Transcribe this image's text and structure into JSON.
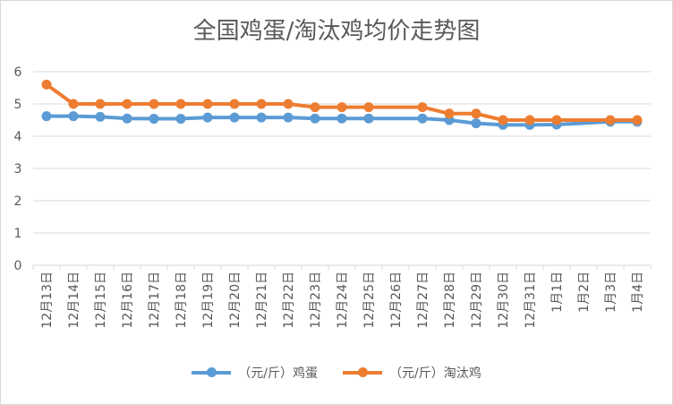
{
  "chart_data": {
    "type": "line",
    "title": "全国鸡蛋/淘汰鸡均价走势图",
    "xlabel": "",
    "ylabel": "",
    "ylim": [
      0,
      6
    ],
    "yticks": [
      "0",
      "1",
      "2",
      "3",
      "4",
      "5",
      "6"
    ],
    "grid": true,
    "legend_position": "bottom",
    "categories": [
      "12月13日",
      "12月14日",
      "12月15日",
      "12月16日",
      "12月17日",
      "12月18日",
      "12月19日",
      "12月20日",
      "12月21日",
      "12月22日",
      "12月23日",
      "12月24日",
      "12月25日",
      "12月26日",
      "12月27日",
      "12月28日",
      "12月29日",
      "12月30日",
      "12月31日",
      "1月1日",
      "1月2日",
      "1月3日",
      "1月4日"
    ],
    "series": [
      {
        "name": "（元/斤）鸡蛋",
        "color": "#5b9bd5",
        "values": [
          4.62,
          4.62,
          4.6,
          4.55,
          4.54,
          4.54,
          4.58,
          4.58,
          4.58,
          4.58,
          4.55,
          4.55,
          4.55,
          null,
          4.55,
          4.5,
          4.4,
          4.35,
          4.35,
          4.36,
          null,
          4.45,
          4.45
        ]
      },
      {
        "name": "（元/斤）淘汰鸡",
        "color": "#ed7d31",
        "values": [
          5.6,
          5.0,
          5.0,
          5.0,
          5.0,
          5.0,
          5.0,
          5.0,
          5.0,
          5.0,
          4.9,
          4.9,
          4.9,
          null,
          4.9,
          4.7,
          4.7,
          4.5,
          4.5,
          4.5,
          null,
          4.5,
          4.5
        ]
      }
    ]
  }
}
